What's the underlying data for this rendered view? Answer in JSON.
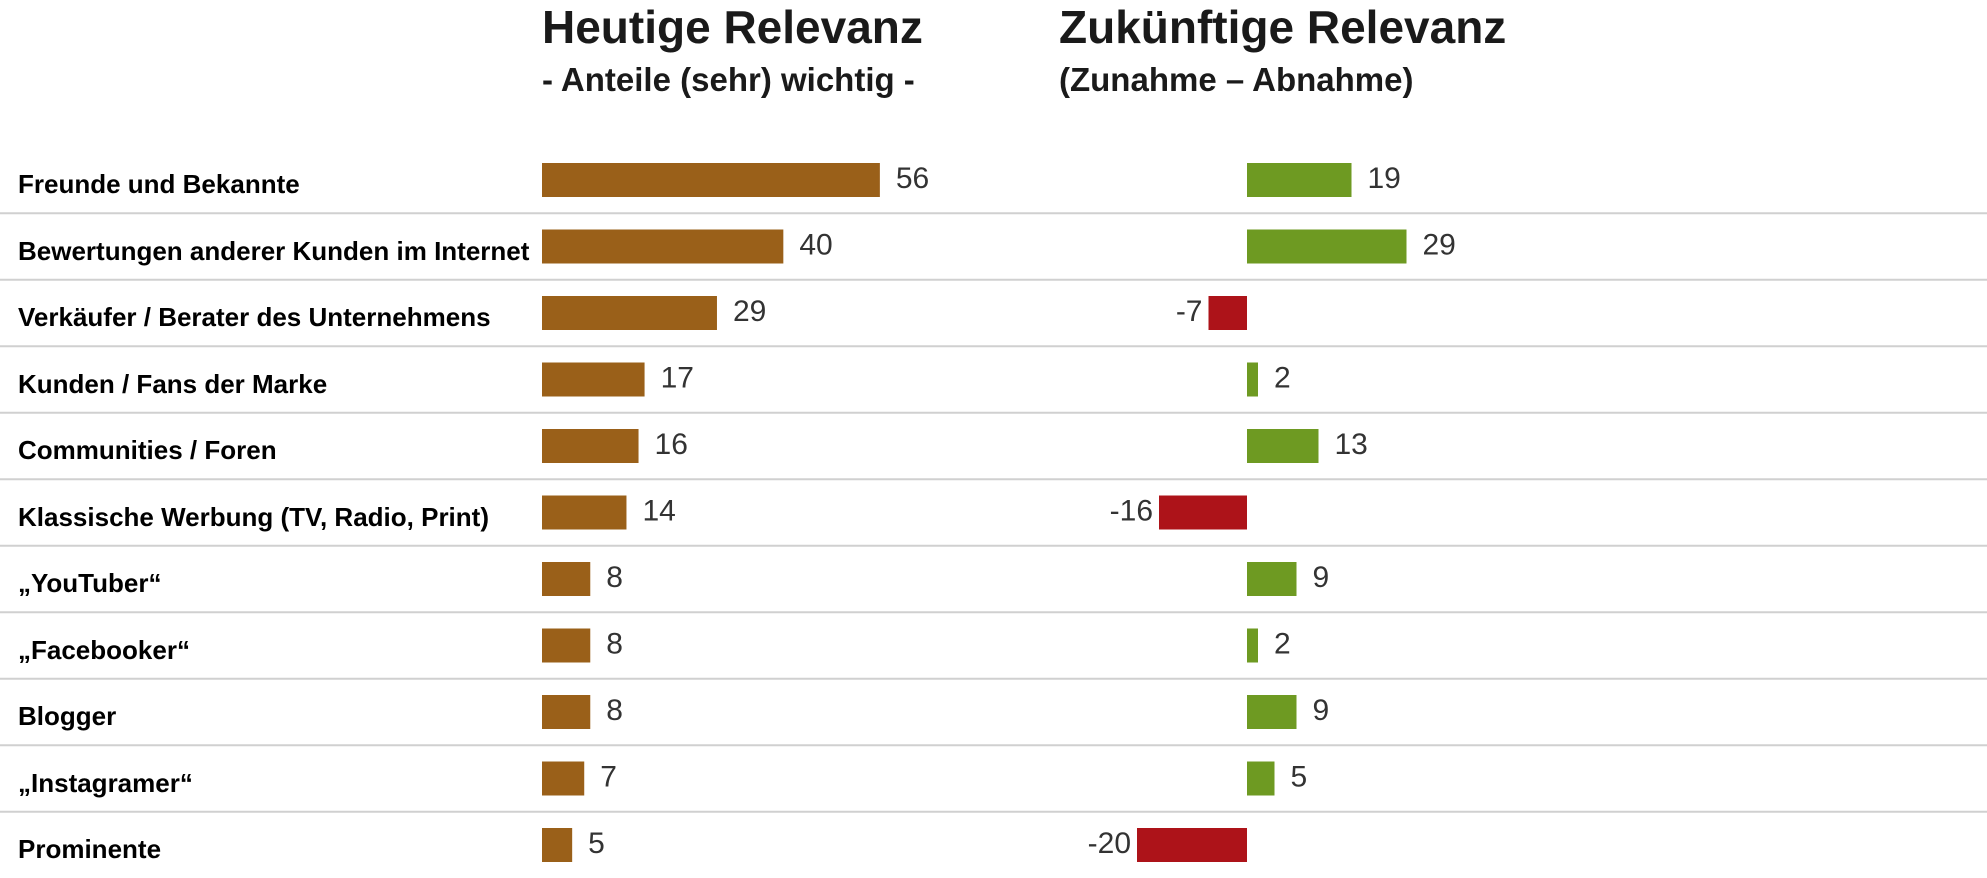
{
  "chart_data": [
    {
      "type": "bar",
      "orientation": "horizontal",
      "title": "Heutige Relevanz",
      "subtitle": "- Anteile (sehr) wichtig -",
      "categories": [
        "Freunde und Bekannte",
        "Bewertungen anderer Kunden im Internet",
        "Verkäufer / Berater des Unternehmens",
        "Kunden / Fans der Marke",
        "Communities / Foren",
        "Klassische Werbung (TV, Radio, Print)",
        "„YouTuber“",
        "„Facebooker“",
        "Blogger",
        "„Instagramer“",
        "Prominente"
      ],
      "values": [
        56,
        40,
        29,
        17,
        16,
        14,
        8,
        8,
        8,
        7,
        5
      ],
      "color": "#9a6019",
      "xlim": [
        0,
        60
      ]
    },
    {
      "type": "bar",
      "orientation": "horizontal",
      "title": "Zukünftige Relevanz",
      "subtitle": "(Zunahme – Abnahme)",
      "values": [
        19,
        29,
        -7,
        2,
        13,
        -16,
        9,
        2,
        9,
        5,
        -20
      ],
      "color": "#6e9a22",
      "negative_color": "#ad1319",
      "xlim": [
        -20,
        40
      ]
    }
  ]
}
